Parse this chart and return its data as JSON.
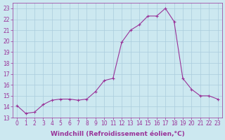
{
  "x": [
    0,
    1,
    2,
    3,
    4,
    5,
    6,
    7,
    8,
    9,
    10,
    11,
    12,
    13,
    14,
    15,
    16,
    17,
    18,
    19,
    20,
    21,
    22,
    23
  ],
  "y": [
    14.1,
    13.4,
    13.5,
    14.2,
    14.6,
    14.7,
    14.7,
    14.6,
    14.7,
    15.4,
    16.4,
    16.6,
    19.9,
    21.0,
    21.5,
    22.3,
    22.3,
    23.0,
    21.8,
    16.6,
    15.6,
    15.0,
    15.0,
    14.7
  ],
  "line_color": "#993399",
  "marker": "+",
  "marker_size": 3,
  "bg_color": "#cce8f0",
  "grid_color": "#aaccdd",
  "xlabel": "Windchill (Refroidissement éolien,°C)",
  "yticks": [
    13,
    14,
    15,
    16,
    17,
    18,
    19,
    20,
    21,
    22,
    23
  ],
  "xlim": [
    -0.5,
    23.5
  ],
  "ylim": [
    13,
    23.5
  ],
  "xticks": [
    0,
    1,
    2,
    3,
    4,
    5,
    6,
    7,
    8,
    9,
    10,
    11,
    12,
    13,
    14,
    15,
    16,
    17,
    18,
    19,
    20,
    21,
    22,
    23
  ],
  "tick_label_fontsize": 5.5,
  "xlabel_fontsize": 6.5,
  "axis_color": "#993399",
  "linewidth": 0.8,
  "markeredgewidth": 0.8
}
